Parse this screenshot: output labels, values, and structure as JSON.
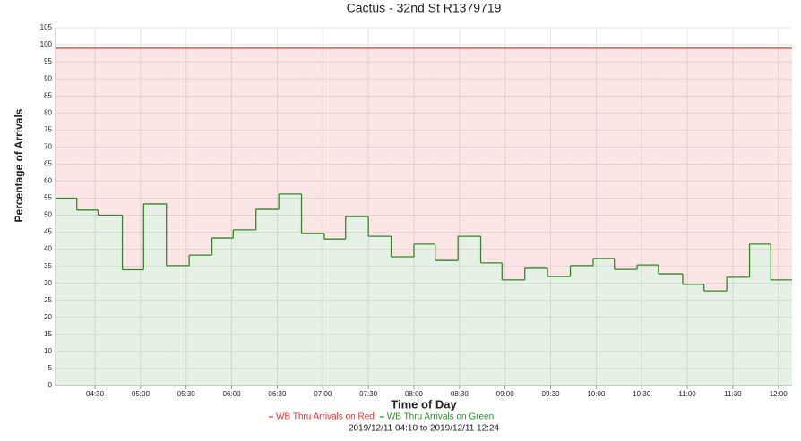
{
  "chart_data": {
    "type": "step-area-stacked",
    "title": "Cactus - 32nd St R1379719",
    "subtitle": "2019/12/11 04:10 to 2019/12/11 12:24",
    "x_label": "Time of Day",
    "y_label": "Percentage of Arrivals",
    "x": [
      "04:04",
      "04:18",
      "04:32",
      "04:48",
      "05:02",
      "05:17",
      "05:32",
      "05:47",
      "06:01",
      "06:16",
      "06:31",
      "06:46",
      "07:01",
      "07:15",
      "07:30",
      "07:45",
      "08:00",
      "08:14",
      "08:29",
      "08:44",
      "08:58",
      "09:13",
      "09:28",
      "09:43",
      "09:58",
      "10:12",
      "10:27",
      "10:41",
      "10:57",
      "11:11",
      "11:26",
      "11:41",
      "11:55"
    ],
    "series": [
      {
        "name": "WB Thru Arrivals on Green",
        "color": "#2b8a2b",
        "values": [
          55,
          51.5,
          50,
          34,
          53.3,
          35.2,
          38.3,
          43.3,
          45.7,
          51.7,
          56.2,
          44.6,
          43,
          49.6,
          43.8,
          37.8,
          41.5,
          36.7,
          43.8,
          36,
          31,
          34.4,
          32,
          35.2,
          37.3,
          34.1,
          35.4,
          32.8,
          29.7,
          27.8,
          31.8,
          41.5,
          31
        ]
      },
      {
        "name": "WB Thru Arrivals on Red",
        "color": "#e03030",
        "values": [
          44,
          47.5,
          49,
          65,
          45.7,
          63.8,
          60.7,
          55.7,
          53.3,
          47.3,
          42.8,
          54.4,
          56,
          49.4,
          55.2,
          61.2,
          57.5,
          62.3,
          55.2,
          63,
          68,
          64.6,
          67,
          63.8,
          61.7,
          64.9,
          63.6,
          66.2,
          69.3,
          71.2,
          67.2,
          57.5,
          68
        ]
      }
    ],
    "legend_order": [
      1,
      0
    ],
    "xlim": [
      "04:04",
      "12:09"
    ],
    "xticks": [
      "04:30",
      "05:00",
      "05:30",
      "06:00",
      "06:30",
      "07:00",
      "07:30",
      "08:00",
      "08:30",
      "09:00",
      "09:30",
      "10:00",
      "10:30",
      "11:00",
      "11:30",
      "12:00"
    ],
    "ylim": [
      0,
      105
    ],
    "yticks": [
      0,
      5,
      10,
      15,
      20,
      25,
      30,
      35,
      40,
      45,
      50,
      55,
      60,
      65,
      70,
      75,
      80,
      85,
      90,
      95,
      100,
      105
    ],
    "grid": true
  }
}
